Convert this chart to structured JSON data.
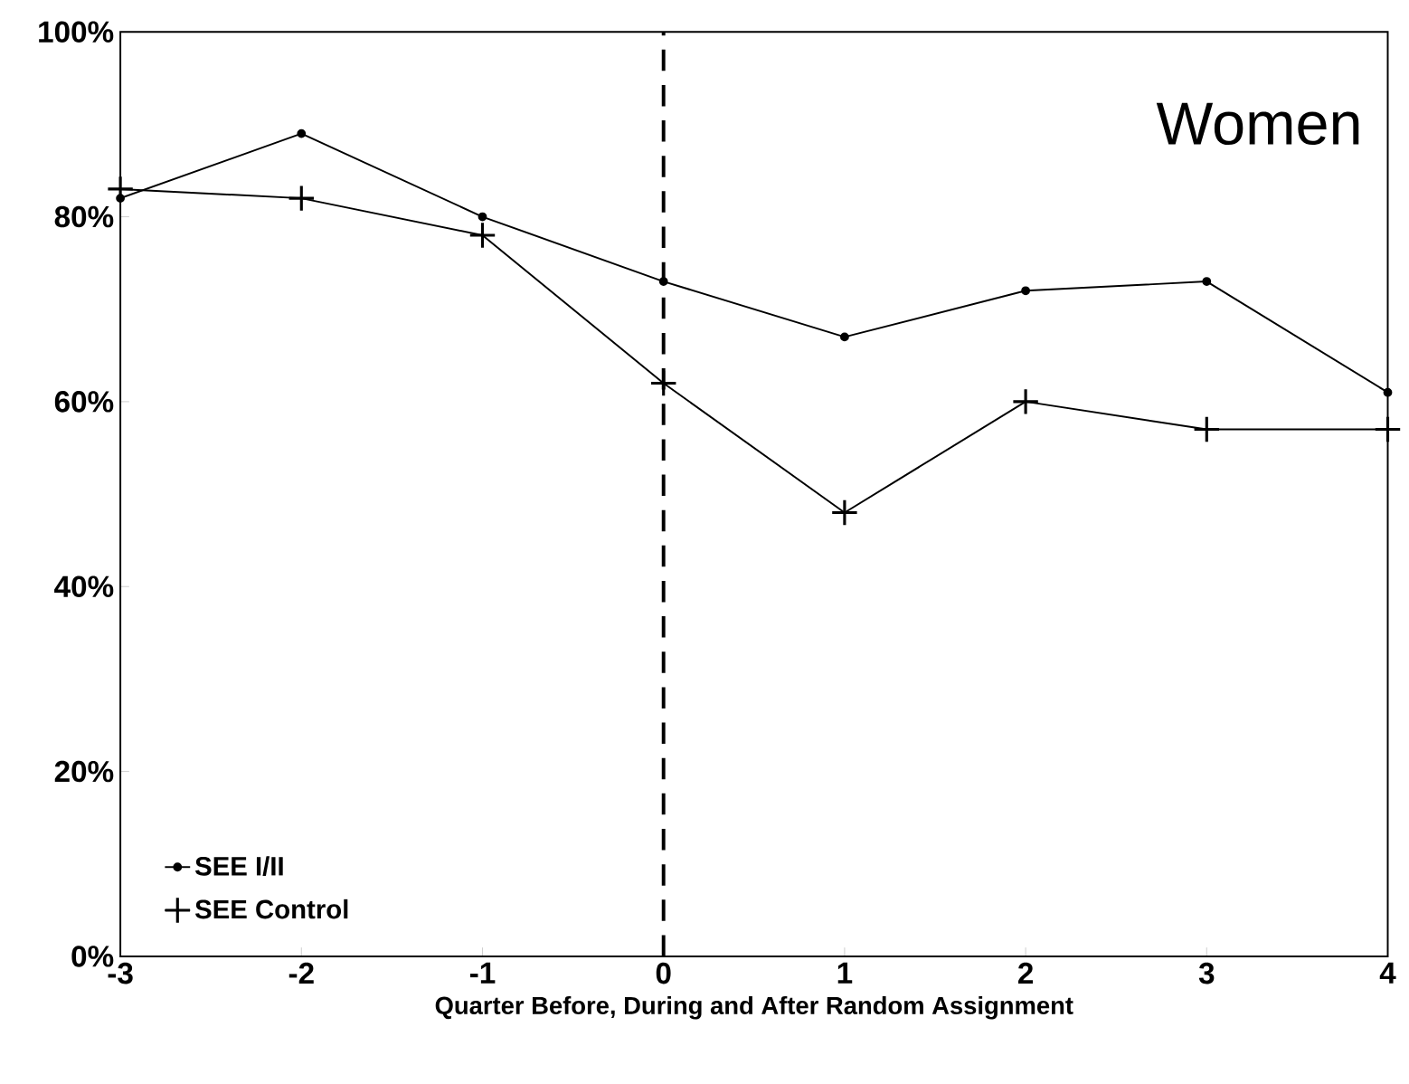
{
  "chart_data": {
    "type": "line",
    "title": "Women",
    "xlabel": "Quarter Before, During and After Random Assignment",
    "x": [
      -3,
      -2,
      -1,
      0,
      1,
      2,
      3,
      4
    ],
    "series": [
      {
        "name": "SEE I/II",
        "color": "#000000",
        "marker": "circle",
        "values": [
          82,
          89,
          80,
          73,
          67,
          72,
          73,
          61
        ]
      },
      {
        "name": "SEE Control",
        "color": "#000000",
        "marker": "cross",
        "values": [
          83,
          82,
          78,
          62,
          48,
          60,
          57,
          57
        ]
      }
    ],
    "xlim": [
      -3,
      4
    ],
    "xticks": [
      -3,
      -2,
      -1,
      0,
      1,
      2,
      3,
      4
    ],
    "ylim": [
      0,
      100
    ],
    "yticks": [
      {
        "value": 0,
        "label": "0%"
      },
      {
        "value": 20,
        "label": "20%"
      },
      {
        "value": 40,
        "label": "40%"
      },
      {
        "value": 60,
        "label": "60%"
      },
      {
        "value": 80,
        "label": "80%"
      },
      {
        "value": 100,
        "label": "100%"
      }
    ],
    "ref_lines": [
      {
        "axis": "x",
        "value": 0,
        "line_style": "dashed",
        "color": "#000000"
      }
    ],
    "legend": "bottom left",
    "grid": false
  }
}
